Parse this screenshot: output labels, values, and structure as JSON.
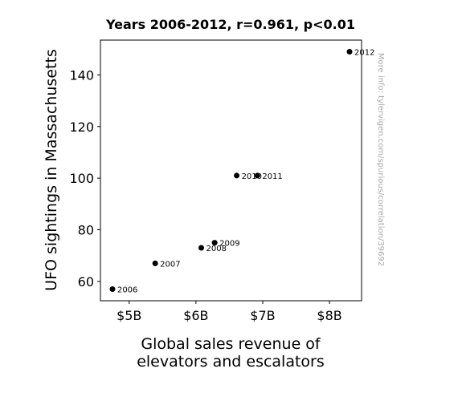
{
  "chart_data": {
    "type": "scatter",
    "title": "Years 2006-2012, r=0.961, p<0.01",
    "xlabel_lines": [
      "Global sales revenue of",
      "elevators and escalators"
    ],
    "ylabel": "UFO sightings in Massachusetts",
    "xlim": [
      4.57,
      8.48
    ],
    "ylim": [
      52.5,
      153.5
    ],
    "xticks": [
      {
        "value": 5,
        "label": "$5B"
      },
      {
        "value": 6,
        "label": "$6B"
      },
      {
        "value": 7,
        "label": "$7B"
      },
      {
        "value": 8,
        "label": "$8B"
      }
    ],
    "yticks": [
      {
        "value": 60,
        "label": "60"
      },
      {
        "value": 80,
        "label": "80"
      },
      {
        "value": 100,
        "label": "100"
      },
      {
        "value": 120,
        "label": "120"
      },
      {
        "value": 140,
        "label": "140"
      }
    ],
    "points": [
      {
        "label": "2006",
        "x": 4.75,
        "y": 57
      },
      {
        "label": "2007",
        "x": 5.39,
        "y": 67
      },
      {
        "label": "2008",
        "x": 6.08,
        "y": 73
      },
      {
        "label": "2009",
        "x": 6.28,
        "y": 75
      },
      {
        "label": "2010",
        "x": 6.61,
        "y": 101
      },
      {
        "label": "2011",
        "x": 6.92,
        "y": 101
      },
      {
        "label": "2012",
        "x": 8.3,
        "y": 149
      }
    ],
    "marker_color": "#000000",
    "grid": false
  },
  "watermark": "More info: tylervigen.com/spurious/correlation/39692"
}
